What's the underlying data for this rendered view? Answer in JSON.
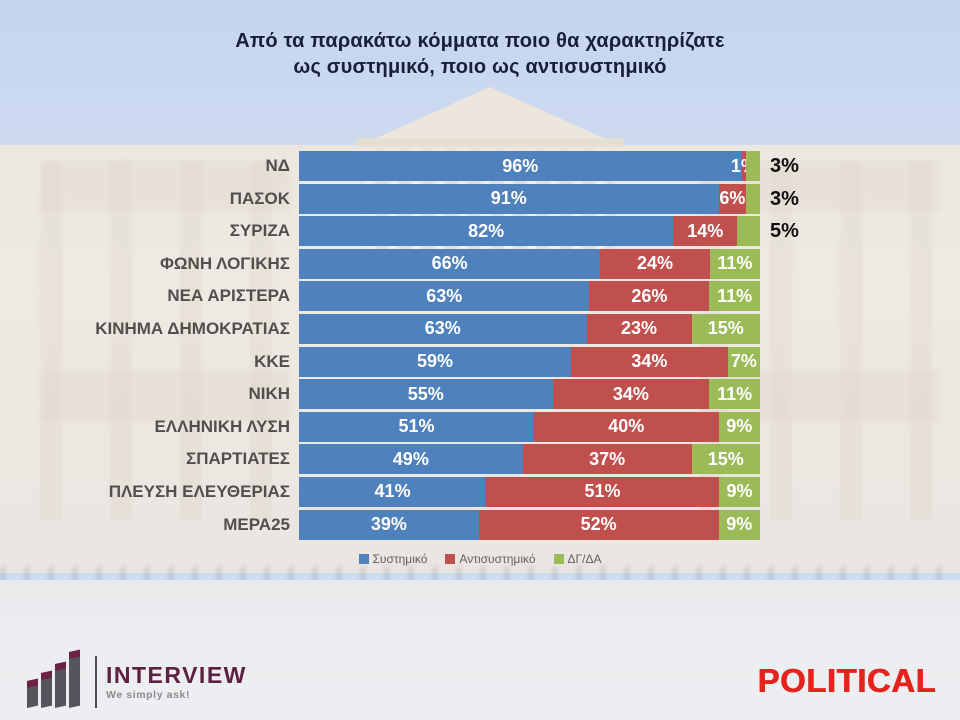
{
  "title": {
    "line1": "Από τα παρακάτω κόμματα ποιο θα χαρακτηρίζατε",
    "line2": "ως συστημικό, ποιο ως αντισυστημικό"
  },
  "chart_data": {
    "type": "bar",
    "orientation": "horizontal",
    "stacked": true,
    "xlim": [
      0,
      100
    ],
    "value_suffix": "%",
    "grid": false,
    "legend_position": "bottom",
    "categories": [
      "ΝΔ",
      "ΠΑΣΟΚ",
      "ΣΥΡΙΖΑ",
      "ΦΩΝΗ ΛΟΓΙΚΗΣ",
      "ΝΕΑ ΑΡΙΣΤΕΡΑ",
      "ΚΙΝΗΜΑ ΔΗΜΟΚΡΑΤΙΑΣ",
      "ΚΚΕ",
      "ΝΙΚΗ",
      "ΕΛΛΗΝΙΚΗ ΛΥΣΗ",
      "ΣΠΑΡΤΙΑΤΕΣ",
      "ΠΛΕΥΣΗ ΕΛΕΥΘΕΡΙΑΣ",
      "ΜΕΡΑ25"
    ],
    "series": [
      {
        "name": "Συστημικό",
        "color": "#4f81bd",
        "values": [
          96,
          91,
          82,
          66,
          63,
          63,
          59,
          55,
          51,
          49,
          41,
          39
        ]
      },
      {
        "name": "Αντισυστημικό",
        "color": "#c0504d",
        "values": [
          1,
          6,
          14,
          24,
          26,
          23,
          34,
          34,
          40,
          37,
          51,
          52
        ]
      },
      {
        "name": "ΔΓ/ΔΑ",
        "color": "#9bbb59",
        "values": [
          3,
          3,
          5,
          11,
          11,
          15,
          7,
          11,
          9,
          15,
          9,
          9
        ]
      }
    ],
    "outside_label_threshold": 5,
    "outside_label_color": "#0d0d0d",
    "inside_label_color": "#ffffff"
  },
  "legend": {
    "items": [
      {
        "label": "Συστημικό",
        "color": "#4f81bd"
      },
      {
        "label": "Αντισυστημικό",
        "color": "#c0504d"
      },
      {
        "label": "ΔΓ/ΔΑ",
        "color": "#9bbb59"
      }
    ]
  },
  "branding": {
    "interview": {
      "name": "INTERVIEW",
      "tagline": "We simply ask!",
      "accent_color": "#5c2040"
    },
    "political": {
      "name": "POLITICAL",
      "color": "#e3231c"
    }
  }
}
